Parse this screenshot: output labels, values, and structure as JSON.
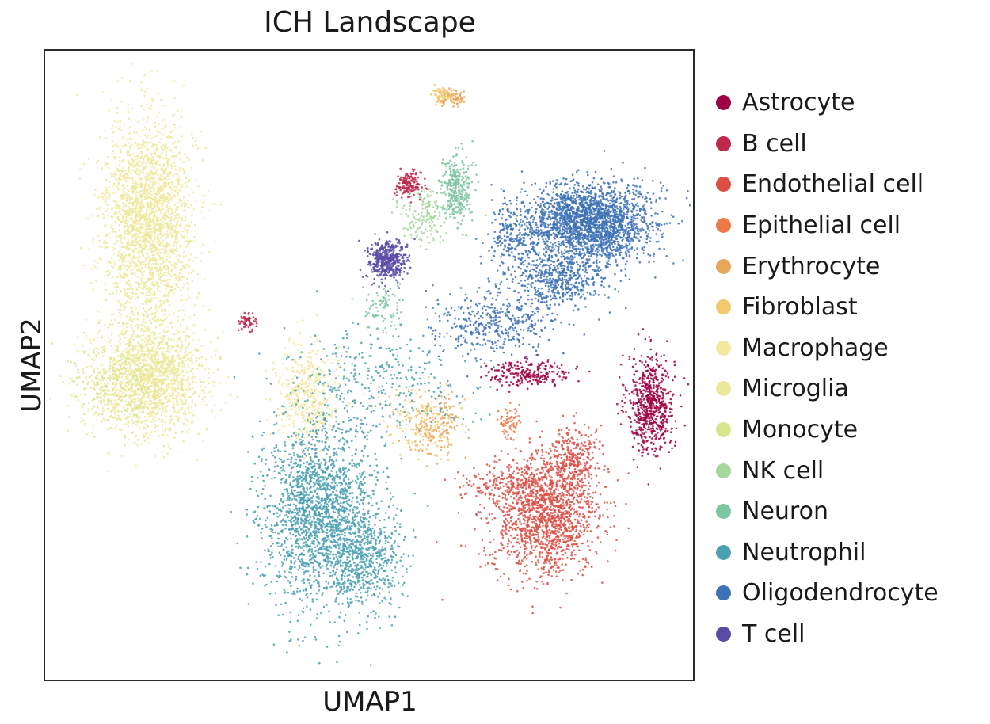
{
  "chart_data": {
    "type": "scatter",
    "title": "ICH Landscape",
    "xlabel": "UMAP1",
    "ylabel": "UMAP2",
    "ticks": "none",
    "legend_position": "right",
    "series": [
      {
        "name": "Astrocyte",
        "color": "#9e0142",
        "clusters": [
          {
            "x": 6.0,
            "y": 4.55,
            "sx": 0.22,
            "sy": 0.45,
            "n": 650
          },
          {
            "x": 3.7,
            "y": 5.1,
            "sx": 0.4,
            "sy": 0.12,
            "n": 230
          }
        ]
      },
      {
        "name": "B cell",
        "color": "#c0284b",
        "clusters": [
          {
            "x": 1.4,
            "y": 8.55,
            "sx": 0.12,
            "sy": 0.12,
            "n": 160
          },
          {
            "x": -1.65,
            "y": 6.05,
            "sx": 0.08,
            "sy": 0.07,
            "n": 60
          }
        ]
      },
      {
        "name": "Endothelial cell",
        "color": "#dc4f45",
        "clusters": [
          {
            "x": 4.0,
            "y": 2.5,
            "sx": 0.5,
            "sy": 0.55,
            "n": 1500
          },
          {
            "x": 4.55,
            "y": 3.55,
            "sx": 0.22,
            "sy": 0.3,
            "n": 280
          },
          {
            "x": 3.2,
            "y": 3.1,
            "sx": 0.4,
            "sy": 0.15,
            "n": 160
          }
        ]
      },
      {
        "name": "Epithelial cell",
        "color": "#ee7a48",
        "clusters": [
          {
            "x": 3.3,
            "y": 4.2,
            "sx": 0.1,
            "sy": 0.15,
            "n": 70
          }
        ]
      },
      {
        "name": "Erythrocyte",
        "color": "#e8a55c",
        "clusters": [
          {
            "x": 2.2,
            "y": 10.15,
            "sx": 0.15,
            "sy": 0.07,
            "n": 80
          },
          {
            "x": 1.95,
            "y": 4.1,
            "sx": 0.25,
            "sy": 0.25,
            "n": 150
          }
        ]
      },
      {
        "name": "Fibroblast",
        "color": "#f2c96c",
        "clusters": [
          {
            "x": 2.05,
            "y": 10.2,
            "sx": 0.12,
            "sy": 0.07,
            "n": 60
          },
          {
            "x": 1.7,
            "y": 4.25,
            "sx": 0.35,
            "sy": 0.3,
            "n": 160
          }
        ]
      },
      {
        "name": "Macrophage",
        "color": "#f2e8a0",
        "clusters": [
          {
            "x": -3.55,
            "y": 8.1,
            "sx": 0.45,
            "sy": 0.85,
            "n": 1400
          },
          {
            "x": -3.6,
            "y": 4.9,
            "sx": 0.55,
            "sy": 0.5,
            "n": 1100
          },
          {
            "x": -0.55,
            "y": 4.7,
            "sx": 0.3,
            "sy": 0.45,
            "n": 450
          }
        ]
      },
      {
        "name": "Microglia",
        "color": "#eae99a",
        "clusters": [
          {
            "x": -3.55,
            "y": 7.5,
            "sx": 0.4,
            "sy": 1.0,
            "n": 900
          },
          {
            "x": -3.4,
            "y": 5.1,
            "sx": 0.5,
            "sy": 0.45,
            "n": 500
          }
        ]
      },
      {
        "name": "Monocyte",
        "color": "#d7e68e",
        "clusters": [
          {
            "x": -4.2,
            "y": 4.9,
            "sx": 0.45,
            "sy": 0.4,
            "n": 260
          }
        ]
      },
      {
        "name": "NK cell",
        "color": "#a6d69b",
        "clusters": [
          {
            "x": 1.7,
            "y": 8.0,
            "sx": 0.25,
            "sy": 0.25,
            "n": 160
          }
        ]
      },
      {
        "name": "Neuron",
        "color": "#7cc6a0",
        "clusters": [
          {
            "x": 2.3,
            "y": 8.45,
            "sx": 0.15,
            "sy": 0.3,
            "n": 320
          },
          {
            "x": 0.9,
            "y": 6.3,
            "sx": 0.2,
            "sy": 0.25,
            "n": 90
          }
        ]
      },
      {
        "name": "Neutrophil",
        "color": "#4aa0b0",
        "clusters": [
          {
            "x": -0.3,
            "y": 2.5,
            "sx": 0.55,
            "sy": 0.85,
            "n": 2000
          },
          {
            "x": 0.6,
            "y": 1.7,
            "sx": 0.35,
            "sy": 0.45,
            "n": 500
          },
          {
            "x": 0.8,
            "y": 4.9,
            "sx": 0.9,
            "sy": 0.5,
            "n": 350
          }
        ]
      },
      {
        "name": "Oligodendrocyte",
        "color": "#3d72b5",
        "clusters": [
          {
            "x": 4.8,
            "y": 7.85,
            "sx": 0.6,
            "sy": 0.35,
            "n": 2200
          },
          {
            "x": 4.2,
            "y": 6.8,
            "sx": 0.45,
            "sy": 0.25,
            "n": 500
          },
          {
            "x": 3.0,
            "y": 6.0,
            "sx": 0.6,
            "sy": 0.3,
            "n": 400
          },
          {
            "x": 3.4,
            "y": 7.6,
            "sx": 0.25,
            "sy": 0.35,
            "n": 200
          }
        ]
      },
      {
        "name": "T cell",
        "color": "#5a4aa6",
        "clusters": [
          {
            "x": 1.0,
            "y": 7.15,
            "sx": 0.18,
            "sy": 0.18,
            "n": 450
          }
        ]
      }
    ],
    "xlim": [
      -5.5,
      6.8
    ],
    "ylim": [
      -0.5,
      11.0
    ]
  }
}
